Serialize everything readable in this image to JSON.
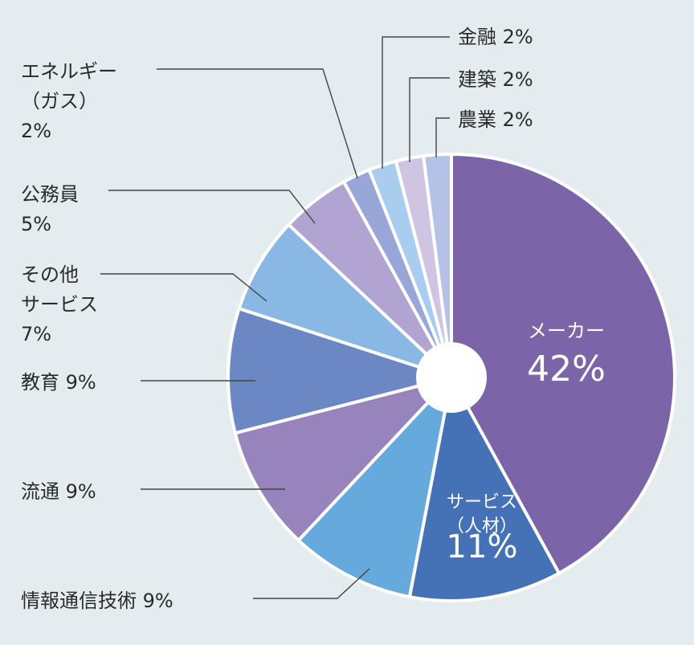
{
  "chart_data": {
    "type": "pie",
    "title": "",
    "start_angle_deg": 0,
    "direction": "clockwise",
    "slices": [
      {
        "label": "メーカー",
        "value": 42,
        "display": "42%",
        "color": "#7b65a8",
        "label_lines": [
          "メーカー"
        ],
        "inside": true
      },
      {
        "label": "サービス（人材）",
        "value": 11,
        "display": "11%",
        "color": "#4572b6",
        "label_lines": [
          "サービス",
          "（人材）"
        ],
        "inside": true
      },
      {
        "label": "情報通信技術",
        "value": 9,
        "display": "9%",
        "color": "#65a9dd",
        "label_lines": [
          "情報通信技術"
        ]
      },
      {
        "label": "流通",
        "value": 9,
        "display": "9%",
        "color": "#9884bd",
        "label_lines": [
          "流通"
        ]
      },
      {
        "label": "教育",
        "value": 9,
        "display": "9%",
        "color": "#6c88c4",
        "label_lines": [
          "教育"
        ]
      },
      {
        "label": "その他サービス",
        "value": 7,
        "display": "7%",
        "color": "#8ab8e4",
        "label_lines": [
          "その他",
          "サービス"
        ]
      },
      {
        "label": "公務員",
        "value": 5,
        "display": "5%",
        "color": "#b1a3d2",
        "label_lines": [
          "公務員"
        ]
      },
      {
        "label": "エネルギー（ガス）",
        "value": 2,
        "display": "2%",
        "color": "#98a6d8",
        "label_lines": [
          "エネルギー",
          "（ガス）"
        ]
      },
      {
        "label": "金融",
        "value": 2,
        "display": "2%",
        "color": "#a8cdee",
        "label_lines": [
          "金融"
        ]
      },
      {
        "label": "建築",
        "value": 2,
        "display": "2%",
        "color": "#cfc4e2",
        "label_lines": [
          "建築"
        ]
      },
      {
        "label": "農業",
        "value": 2,
        "display": "2%",
        "color": "#b5c1e6",
        "label_lines": [
          "農業"
        ]
      }
    ]
  }
}
